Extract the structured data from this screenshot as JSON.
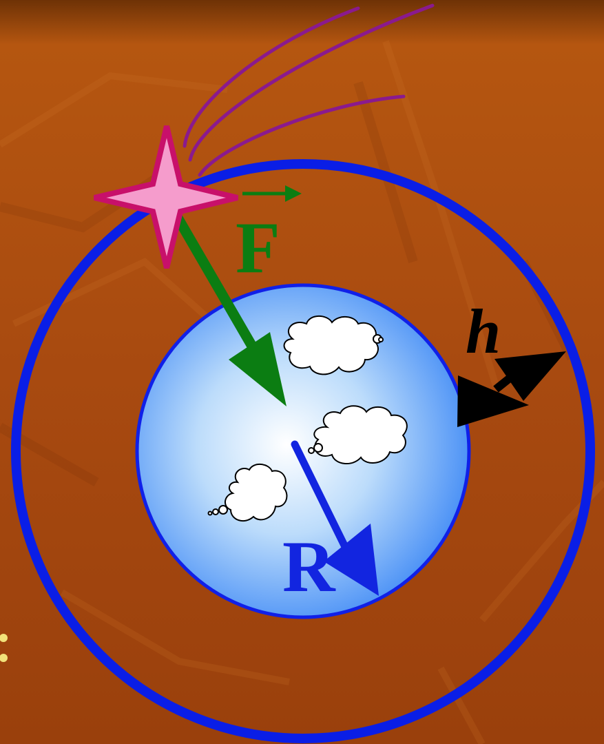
{
  "labels": {
    "force": "F",
    "radius": "R",
    "height": "h"
  },
  "colors": {
    "background": "#a84a10",
    "orbit": "#0a1ee6",
    "planet_center": "#ffffff",
    "planet_edge": "#3a86f5",
    "force_arrow": "#0b7d12",
    "radius_arrow": "#1225e0",
    "height_arrow": "#000000",
    "star_fill": "#f59ccc",
    "star_stroke": "#c8106a",
    "trail": "#8a1a8e",
    "bullet": "#f2e27a"
  }
}
